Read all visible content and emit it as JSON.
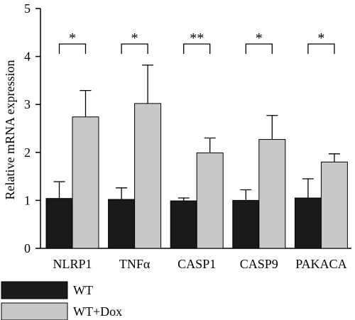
{
  "chart_data": {
    "type": "bar",
    "categories": [
      "NLRP1",
      "TNFα",
      "CASP1",
      "CASP9",
      "PAKACA"
    ],
    "series": [
      {
        "name": "WT",
        "values": [
          1.04,
          1.02,
          0.99,
          1.0,
          1.05
        ],
        "errors": [
          0.35,
          0.24,
          0.06,
          0.22,
          0.4
        ],
        "color": "#1a1a1a"
      },
      {
        "name": "WT+Dox",
        "values": [
          2.74,
          3.02,
          1.99,
          2.27,
          1.8
        ],
        "errors": [
          0.55,
          0.8,
          0.31,
          0.5,
          0.17
        ],
        "color": "#c8c8c8"
      }
    ],
    "significance": [
      "*",
      "*",
      "**",
      "*",
      "*"
    ],
    "ylabel": "Relative mRNA expression",
    "xlabel": "",
    "ylim": [
      0,
      5
    ],
    "yticks": [
      "0",
      "1",
      "2",
      "3",
      "4",
      "5"
    ],
    "grid": false,
    "legend_position": "bottom-left"
  }
}
